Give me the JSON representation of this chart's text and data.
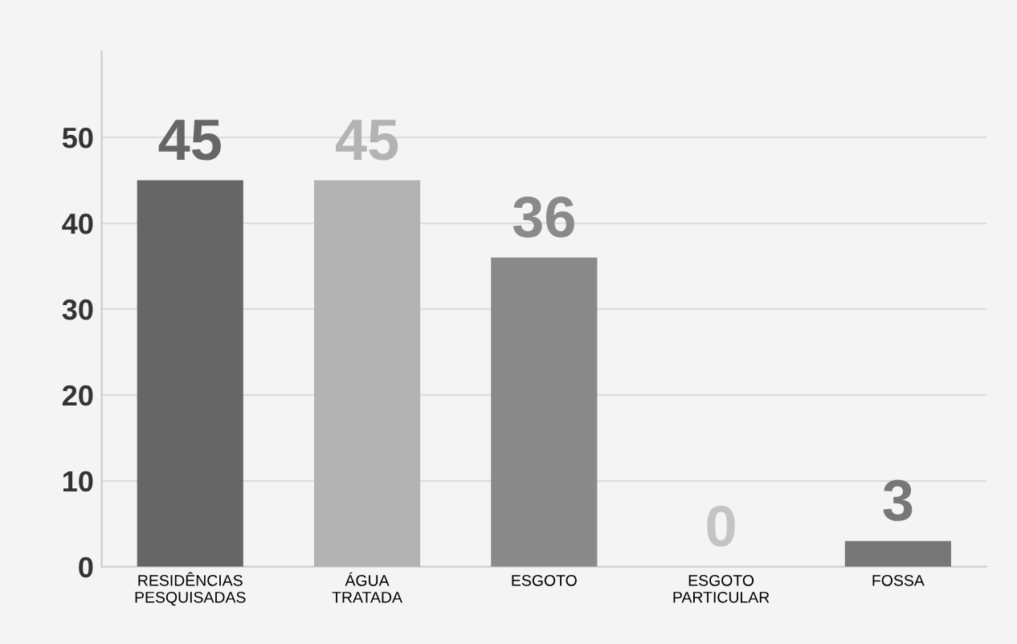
{
  "chart_data": {
    "type": "bar",
    "categories": [
      "RESIDÊNCIAS\nPESQUISADAS",
      "ÁGUA\nTRATADA",
      "ESGOTO",
      "ESGOTO\nPARTICULAR",
      "FOSSA"
    ],
    "values": [
      45,
      45,
      36,
      0,
      3
    ],
    "colors": [
      "#666666",
      "#b3b3b3",
      "#8a8a8a",
      "#c4c4c4",
      "#777777"
    ],
    "ylim": [
      0,
      60
    ],
    "yticks": [
      0,
      10,
      20,
      30,
      40,
      50
    ],
    "grid": "y",
    "data_labels": true
  }
}
